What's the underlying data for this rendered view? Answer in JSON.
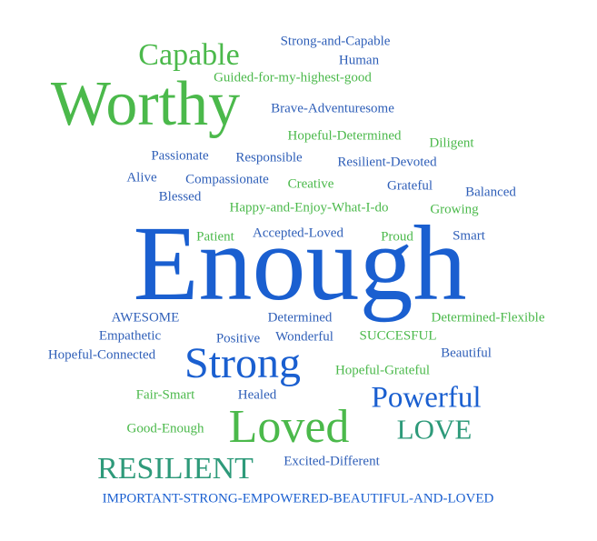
{
  "word_cloud": {
    "colors": {
      "green": "#4bb94b",
      "blue": "#2f5fb8",
      "teal": "#2e9a7a",
      "big_blue": "#1a5fd0"
    },
    "words": [
      {
        "text": "Strong-and-Capable",
        "color": "blue"
      },
      {
        "text": "Capable",
        "color": "green"
      },
      {
        "text": "Human",
        "color": "blue"
      },
      {
        "text": "Guided-for-my-highest-good",
        "color": "green"
      },
      {
        "text": "Worthy",
        "color": "green"
      },
      {
        "text": "Brave-Adventuresome",
        "color": "blue"
      },
      {
        "text": "Hopeful-Determined",
        "color": "green"
      },
      {
        "text": "Diligent",
        "color": "green"
      },
      {
        "text": "Passionate",
        "color": "blue"
      },
      {
        "text": "Responsible",
        "color": "blue"
      },
      {
        "text": "Resilient-Devoted",
        "color": "blue"
      },
      {
        "text": "Alive",
        "color": "blue"
      },
      {
        "text": "Compassionate",
        "color": "blue"
      },
      {
        "text": "Creative",
        "color": "green"
      },
      {
        "text": "Grateful",
        "color": "blue"
      },
      {
        "text": "Balanced",
        "color": "blue"
      },
      {
        "text": "Blessed",
        "color": "blue"
      },
      {
        "text": "Happy-and-Enjoy-What-I-do",
        "color": "green"
      },
      {
        "text": "Growing",
        "color": "green"
      },
      {
        "text": "Patient",
        "color": "green"
      },
      {
        "text": "Accepted-Loved",
        "color": "blue"
      },
      {
        "text": "Proud",
        "color": "green"
      },
      {
        "text": "Smart",
        "color": "blue"
      },
      {
        "text": "Enough",
        "color": "big_blue"
      },
      {
        "text": "AWESOME",
        "color": "blue"
      },
      {
        "text": "Determined",
        "color": "blue"
      },
      {
        "text": "Determined-Flexible",
        "color": "green"
      },
      {
        "text": "Empathetic",
        "color": "blue"
      },
      {
        "text": "Positive",
        "color": "blue"
      },
      {
        "text": "Wonderful",
        "color": "blue"
      },
      {
        "text": "SUCCESFUL",
        "color": "green"
      },
      {
        "text": "Hopeful-Connected",
        "color": "blue"
      },
      {
        "text": "Strong",
        "color": "big_blue"
      },
      {
        "text": "Beautiful",
        "color": "blue"
      },
      {
        "text": "Hopeful-Grateful",
        "color": "green"
      },
      {
        "text": "Fair-Smart",
        "color": "green"
      },
      {
        "text": "Healed",
        "color": "blue"
      },
      {
        "text": "Powerful",
        "color": "big_blue"
      },
      {
        "text": "Good-Enough",
        "color": "green"
      },
      {
        "text": "Loved",
        "color": "green"
      },
      {
        "text": "LOVE",
        "color": "teal"
      },
      {
        "text": "RESILIENT",
        "color": "teal"
      },
      {
        "text": "Excited-Different",
        "color": "blue"
      },
      {
        "text": "IMPORTANT-STRONG-EMPOWERED-BEAUTIFUL-AND-LOVED",
        "color": "blue"
      }
    ]
  }
}
